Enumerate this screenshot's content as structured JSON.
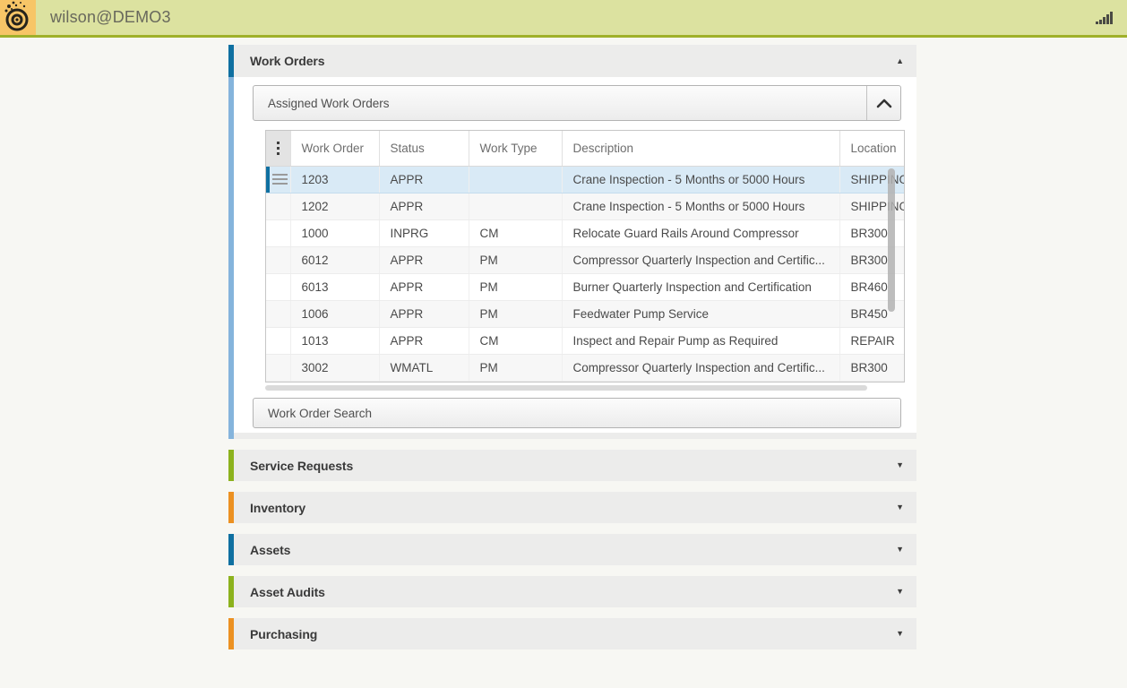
{
  "topbar": {
    "username": "wilson@DEMO3"
  },
  "icons": {
    "chevron_up": "▲",
    "chevron_down": "▼"
  },
  "colors": {
    "blue": "#0f70a1",
    "light_blue": "#85b4dc",
    "green": "#8cb21d",
    "orange": "#ec9122",
    "topbar_bg": "#dce2a0",
    "topbar_border": "#9fb02a",
    "logo_bg": "#f7c567",
    "selected_row_bg": "#d9eaf6",
    "section_header_bg": "#ececeb"
  },
  "work_orders": {
    "title": "Work Orders",
    "assigned_panel_label": "Assigned Work Orders",
    "search_button_label": "Work Order Search",
    "table": {
      "columns": [
        "Work Order",
        "Status",
        "Work Type",
        "Description",
        "Location"
      ],
      "rows": [
        {
          "work_order": "1203",
          "status": "APPR",
          "work_type": "",
          "description": "Crane Inspection - 5 Months or 5000 Hours",
          "location": "SHIPPING",
          "selected": true
        },
        {
          "work_order": "1202",
          "status": "APPR",
          "work_type": "",
          "description": "Crane Inspection - 5 Months or 5000 Hours",
          "location": "SHIPPING",
          "selected": false
        },
        {
          "work_order": "1000",
          "status": "INPRG",
          "work_type": "CM",
          "description": "Relocate Guard Rails Around Compressor",
          "location": "BR300",
          "selected": false
        },
        {
          "work_order": "6012",
          "status": "APPR",
          "work_type": "PM",
          "description": "Compressor Quarterly Inspection and Certific...",
          "location": "BR300",
          "selected": false
        },
        {
          "work_order": "6013",
          "status": "APPR",
          "work_type": "PM",
          "description": "Burner Quarterly Inspection and Certification",
          "location": "BR460",
          "selected": false
        },
        {
          "work_order": "1006",
          "status": "APPR",
          "work_type": "PM",
          "description": "Feedwater Pump Service",
          "location": "BR450",
          "selected": false
        },
        {
          "work_order": "1013",
          "status": "APPR",
          "work_type": "CM",
          "description": "Inspect and Repair Pump as Required",
          "location": "REPAIR",
          "selected": false
        },
        {
          "work_order": "3002",
          "status": "WMATL",
          "work_type": "PM",
          "description": "Compressor Quarterly Inspection and Certific...",
          "location": "BR300",
          "selected": false
        }
      ]
    }
  },
  "collapsed_sections": [
    {
      "id": "service-requests",
      "label": "Service Requests",
      "accent": "#8cb21d"
    },
    {
      "id": "inventory",
      "label": "Inventory",
      "accent": "#ec9122"
    },
    {
      "id": "assets",
      "label": "Assets",
      "accent": "#0f70a1"
    },
    {
      "id": "asset-audits",
      "label": "Asset Audits",
      "accent": "#8cb21d"
    },
    {
      "id": "purchasing",
      "label": "Purchasing",
      "accent": "#ec9122"
    }
  ]
}
